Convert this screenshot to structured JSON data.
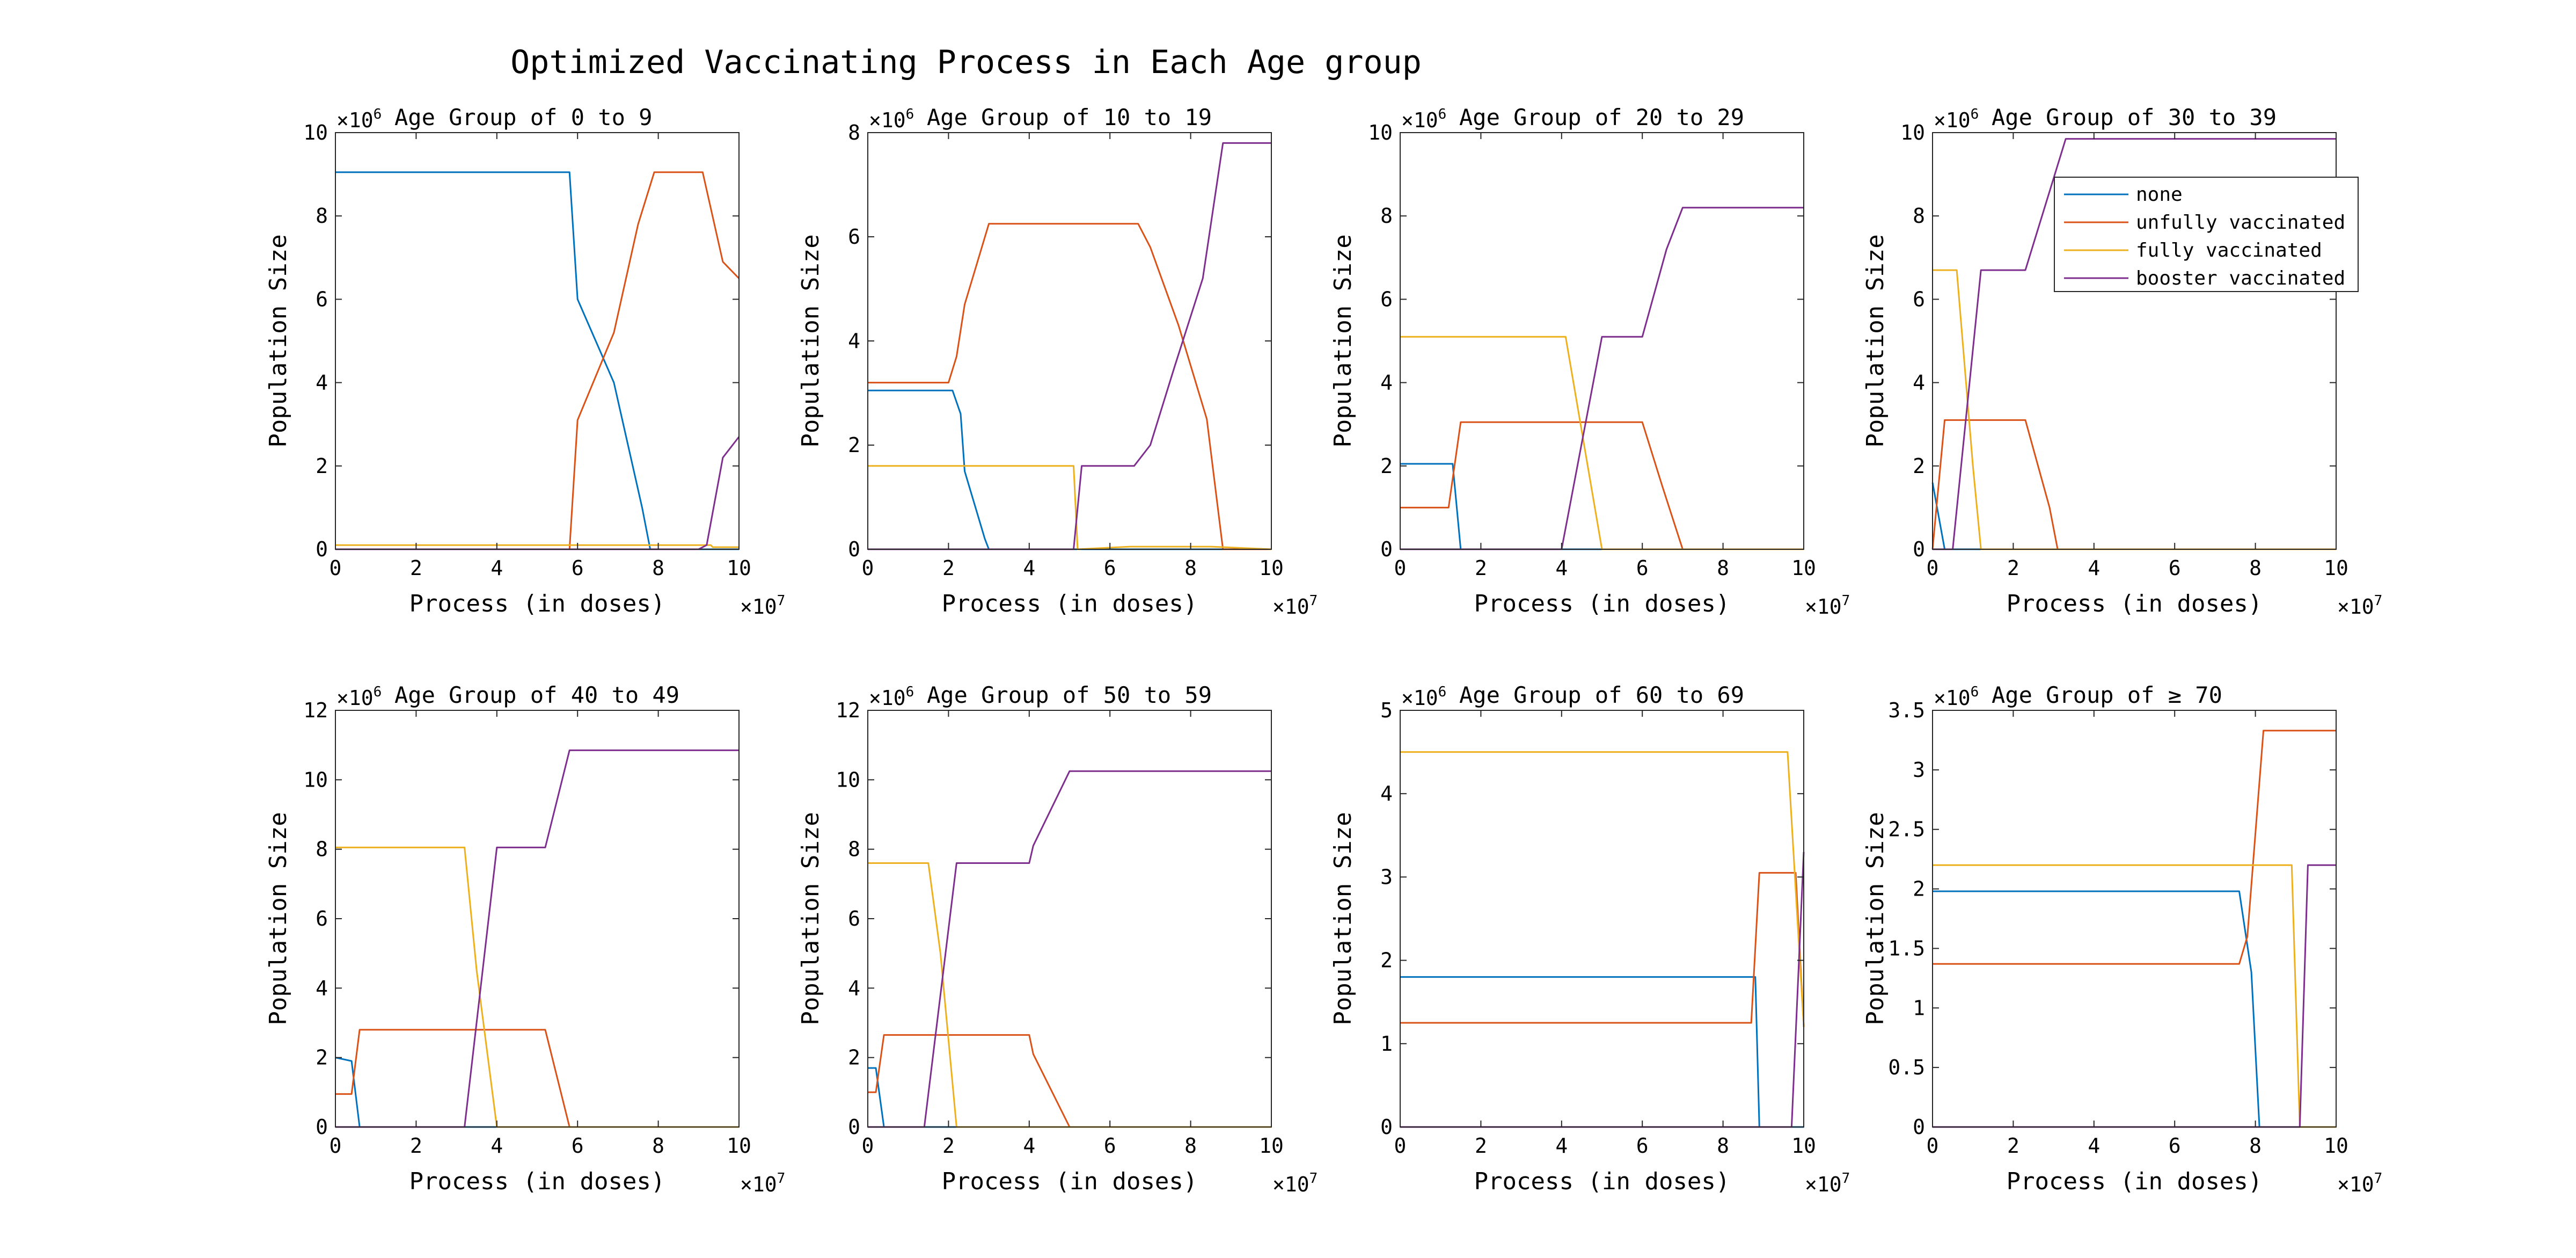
{
  "figure": {
    "title": "Optimized Vaccinating Process in Each Age group"
  },
  "colors": {
    "none": "#0072BD",
    "unfully vaccinated": "#D95319",
    "fully vaccinated": "#EDB120",
    "booster vaccinated": "#7E2F8E"
  },
  "legend": {
    "location": "top-right",
    "entries": [
      "none",
      "unfully vaccinated",
      "fully vaccinated",
      "booster vaccinated"
    ]
  },
  "chart_data": [
    {
      "type": "line",
      "title": "Age Group of 0 to 9",
      "xlabel": "Process (in doses)",
      "ylabel": "Population Size",
      "x_multiplier": "10^7",
      "y_multiplier": "10^6",
      "xlim": [
        0,
        10
      ],
      "ylim": [
        0,
        10
      ],
      "xticks": [
        "0",
        "2",
        "4",
        "6",
        "8",
        "10"
      ],
      "yticks": [
        "0",
        "2",
        "4",
        "6",
        "8",
        "10"
      ],
      "series": [
        {
          "key": "none",
          "points": [
            [
              0,
              9.05
            ],
            [
              5.8,
              9.05
            ],
            [
              6.0,
              6.0
            ],
            [
              6.9,
              4.0
            ],
            [
              7.6,
              1.0
            ],
            [
              7.8,
              0
            ],
            [
              10,
              0
            ]
          ]
        },
        {
          "key": "unfully vaccinated",
          "points": [
            [
              0,
              0
            ],
            [
              5.8,
              0
            ],
            [
              6.0,
              3.1
            ],
            [
              6.9,
              5.2
            ],
            [
              7.5,
              7.8
            ],
            [
              7.9,
              9.05
            ],
            [
              9.1,
              9.05
            ],
            [
              9.6,
              6.9
            ],
            [
              10,
              6.5
            ]
          ]
        },
        {
          "key": "fully vaccinated",
          "points": [
            [
              0,
              0.1
            ],
            [
              9.3,
              0.1
            ],
            [
              9.35,
              0.05
            ],
            [
              10,
              0.05
            ]
          ]
        },
        {
          "key": "booster vaccinated",
          "points": [
            [
              0,
              0
            ],
            [
              9.0,
              0
            ],
            [
              9.2,
              0.1
            ],
            [
              9.6,
              2.2
            ],
            [
              10,
              2.7
            ]
          ]
        }
      ]
    },
    {
      "type": "line",
      "title": "Age Group of 10 to 19",
      "xlabel": "Process (in doses)",
      "ylabel": "Population Size",
      "x_multiplier": "10^7",
      "y_multiplier": "10^6",
      "xlim": [
        0,
        10
      ],
      "ylim": [
        0,
        8
      ],
      "xticks": [
        "0",
        "2",
        "4",
        "6",
        "8",
        "10"
      ],
      "yticks": [
        "0",
        "2",
        "4",
        "6",
        "8"
      ],
      "series": [
        {
          "key": "none",
          "points": [
            [
              0,
              3.05
            ],
            [
              2.1,
              3.05
            ],
            [
              2.3,
              2.6
            ],
            [
              2.4,
              1.5
            ],
            [
              2.9,
              0.2
            ],
            [
              3.0,
              0
            ],
            [
              10,
              0
            ]
          ]
        },
        {
          "key": "unfully vaccinated",
          "points": [
            [
              0,
              3.2
            ],
            [
              2.0,
              3.2
            ],
            [
              2.2,
              3.7
            ],
            [
              2.4,
              4.7
            ],
            [
              3.0,
              6.25
            ],
            [
              6.7,
              6.25
            ],
            [
              7.0,
              5.8
            ],
            [
              7.7,
              4.3
            ],
            [
              8.4,
              2.5
            ],
            [
              8.8,
              0
            ],
            [
              10,
              0
            ]
          ]
        },
        {
          "key": "fully vaccinated",
          "points": [
            [
              0,
              1.6
            ],
            [
              5.1,
              1.6
            ],
            [
              5.2,
              0
            ],
            [
              6.5,
              0.05
            ],
            [
              8.5,
              0.05
            ],
            [
              10,
              0
            ]
          ]
        },
        {
          "key": "booster vaccinated",
          "points": [
            [
              0,
              0
            ],
            [
              5.1,
              0
            ],
            [
              5.3,
              1.6
            ],
            [
              6.6,
              1.6
            ],
            [
              7.0,
              2.0
            ],
            [
              7.6,
              3.5
            ],
            [
              8.3,
              5.2
            ],
            [
              8.8,
              7.8
            ],
            [
              10,
              7.8
            ]
          ]
        }
      ]
    },
    {
      "type": "line",
      "title": "Age Group of 20 to 29",
      "xlabel": "Process (in doses)",
      "ylabel": "Population Size",
      "x_multiplier": "10^7",
      "y_multiplier": "10^6",
      "xlim": [
        0,
        10
      ],
      "ylim": [
        0,
        10
      ],
      "xticks": [
        "0",
        "2",
        "4",
        "6",
        "8",
        "10"
      ],
      "yticks": [
        "0",
        "2",
        "4",
        "6",
        "8",
        "10"
      ],
      "series": [
        {
          "key": "none",
          "points": [
            [
              0,
              2.05
            ],
            [
              1.3,
              2.05
            ],
            [
              1.5,
              0
            ],
            [
              10,
              0
            ]
          ]
        },
        {
          "key": "unfully vaccinated",
          "points": [
            [
              0,
              1.0
            ],
            [
              1.2,
              1.0
            ],
            [
              1.5,
              3.05
            ],
            [
              6.0,
              3.05
            ],
            [
              6.5,
              1.5
            ],
            [
              7.0,
              0
            ],
            [
              10,
              0
            ]
          ]
        },
        {
          "key": "fully vaccinated",
          "points": [
            [
              0,
              5.1
            ],
            [
              4.1,
              5.1
            ],
            [
              5.0,
              0
            ],
            [
              10,
              0
            ]
          ]
        },
        {
          "key": "booster vaccinated",
          "points": [
            [
              0,
              0
            ],
            [
              4.0,
              0
            ],
            [
              5.0,
              5.1
            ],
            [
              6.0,
              5.1
            ],
            [
              6.6,
              7.2
            ],
            [
              7.0,
              8.2
            ],
            [
              10,
              8.2
            ]
          ]
        }
      ]
    },
    {
      "type": "line",
      "title": "Age Group of 30 to 39",
      "xlabel": "Process (in doses)",
      "ylabel": "Population Size",
      "x_multiplier": "10^7",
      "y_multiplier": "10^6",
      "xlim": [
        0,
        10
      ],
      "ylim": [
        0,
        10
      ],
      "xticks": [
        "0",
        "2",
        "4",
        "6",
        "8",
        "10"
      ],
      "yticks": [
        "0",
        "2",
        "4",
        "6",
        "8",
        "10"
      ],
      "legend": true,
      "series": [
        {
          "key": "none",
          "points": [
            [
              0,
              1.6
            ],
            [
              0.3,
              0
            ],
            [
              10,
              0
            ]
          ]
        },
        {
          "key": "unfully vaccinated",
          "points": [
            [
              0,
              0
            ],
            [
              0.3,
              3.1
            ],
            [
              2.3,
              3.1
            ],
            [
              2.9,
              1.0
            ],
            [
              3.1,
              0
            ],
            [
              10,
              0
            ]
          ]
        },
        {
          "key": "fully vaccinated",
          "points": [
            [
              0,
              6.7
            ],
            [
              0.6,
              6.7
            ],
            [
              1.0,
              2.0
            ],
            [
              1.2,
              0
            ],
            [
              10,
              0
            ]
          ]
        },
        {
          "key": "booster vaccinated",
          "points": [
            [
              0,
              0
            ],
            [
              0.5,
              0
            ],
            [
              1.2,
              6.7
            ],
            [
              2.3,
              6.7
            ],
            [
              3.3,
              9.85
            ],
            [
              10,
              9.85
            ]
          ]
        }
      ]
    },
    {
      "type": "line",
      "title": "Age Group of 40 to 49",
      "xlabel": "Process (in doses)",
      "ylabel": "Population Size",
      "x_multiplier": "10^7",
      "y_multiplier": "10^6",
      "xlim": [
        0,
        10
      ],
      "ylim": [
        0,
        12
      ],
      "xticks": [
        "0",
        "2",
        "4",
        "6",
        "8",
        "10"
      ],
      "yticks": [
        "0",
        "2",
        "4",
        "6",
        "8",
        "10",
        "12"
      ],
      "series": [
        {
          "key": "none",
          "points": [
            [
              0,
              2.0
            ],
            [
              0.4,
              1.9
            ],
            [
              0.6,
              0
            ],
            [
              10,
              0
            ]
          ]
        },
        {
          "key": "unfully vaccinated",
          "points": [
            [
              0,
              0.95
            ],
            [
              0.4,
              0.95
            ],
            [
              0.6,
              2.8
            ],
            [
              5.2,
              2.8
            ],
            [
              5.8,
              0
            ],
            [
              10,
              0
            ]
          ]
        },
        {
          "key": "fully vaccinated",
          "points": [
            [
              0,
              8.05
            ],
            [
              3.2,
              8.05
            ],
            [
              3.5,
              4.5
            ],
            [
              4.0,
              0
            ],
            [
              10,
              0
            ]
          ]
        },
        {
          "key": "booster vaccinated",
          "points": [
            [
              0,
              0
            ],
            [
              3.2,
              0
            ],
            [
              4.0,
              8.05
            ],
            [
              5.2,
              8.05
            ],
            [
              5.8,
              10.85
            ],
            [
              10,
              10.85
            ]
          ]
        }
      ]
    },
    {
      "type": "line",
      "title": "Age Group of 50 to 59",
      "xlabel": "Process (in doses)",
      "ylabel": "Population Size",
      "x_multiplier": "10^7",
      "y_multiplier": "10^6",
      "xlim": [
        0,
        10
      ],
      "ylim": [
        0,
        12
      ],
      "xticks": [
        "0",
        "2",
        "4",
        "6",
        "8",
        "10"
      ],
      "yticks": [
        "0",
        "2",
        "4",
        "6",
        "8",
        "10",
        "12"
      ],
      "series": [
        {
          "key": "none",
          "points": [
            [
              0,
              1.7
            ],
            [
              0.2,
              1.7
            ],
            [
              0.4,
              0
            ],
            [
              10,
              0
            ]
          ]
        },
        {
          "key": "unfully vaccinated",
          "points": [
            [
              0,
              1.0
            ],
            [
              0.2,
              1.0
            ],
            [
              0.4,
              2.65
            ],
            [
              4.0,
              2.65
            ],
            [
              4.1,
              2.1
            ],
            [
              5.0,
              0
            ],
            [
              10,
              0
            ]
          ]
        },
        {
          "key": "fully vaccinated",
          "points": [
            [
              0,
              7.6
            ],
            [
              1.5,
              7.6
            ],
            [
              1.8,
              5.0
            ],
            [
              2.2,
              0
            ],
            [
              10,
              0
            ]
          ]
        },
        {
          "key": "booster vaccinated",
          "points": [
            [
              0,
              0
            ],
            [
              1.4,
              0
            ],
            [
              2.2,
              7.6
            ],
            [
              4.0,
              7.6
            ],
            [
              4.1,
              8.1
            ],
            [
              5.0,
              10.25
            ],
            [
              10,
              10.25
            ]
          ]
        }
      ]
    },
    {
      "type": "line",
      "title": "Age Group of 60 to 69",
      "xlabel": "Process (in doses)",
      "ylabel": "Population Size",
      "x_multiplier": "10^7",
      "y_multiplier": "10^6",
      "xlim": [
        0,
        10
      ],
      "ylim": [
        0,
        5
      ],
      "xticks": [
        "0",
        "2",
        "4",
        "6",
        "8",
        "10"
      ],
      "yticks": [
        "0",
        "1",
        "2",
        "3",
        "4",
        "5"
      ],
      "series": [
        {
          "key": "none",
          "points": [
            [
              0,
              1.8
            ],
            [
              8.8,
              1.8
            ],
            [
              8.9,
              0
            ],
            [
              10,
              0
            ]
          ]
        },
        {
          "key": "unfully vaccinated",
          "points": [
            [
              0,
              1.25
            ],
            [
              8.7,
              1.25
            ],
            [
              8.9,
              3.05
            ],
            [
              9.8,
              3.05
            ],
            [
              10,
              1.2
            ]
          ]
        },
        {
          "key": "fully vaccinated",
          "points": [
            [
              0,
              4.5
            ],
            [
              9.6,
              4.5
            ],
            [
              10,
              1.2
            ]
          ]
        },
        {
          "key": "booster vaccinated",
          "points": [
            [
              0,
              0
            ],
            [
              9.7,
              0
            ],
            [
              10,
              3.3
            ]
          ]
        }
      ]
    },
    {
      "type": "line",
      "title": "Age Group of ≥ 70",
      "xlabel": "Process (in doses)",
      "ylabel": "Population Size",
      "x_multiplier": "10^7",
      "y_multiplier": "10^6",
      "xlim": [
        0,
        10
      ],
      "ylim": [
        0,
        3.5
      ],
      "xticks": [
        "0",
        "2",
        "4",
        "6",
        "8",
        "10"
      ],
      "yticks": [
        "0",
        "0.5",
        "1",
        "1.5",
        "2",
        "2.5",
        "3",
        "3.5"
      ],
      "series": [
        {
          "key": "none",
          "points": [
            [
              0,
              1.98
            ],
            [
              7.6,
              1.98
            ],
            [
              7.9,
              1.3
            ],
            [
              8.1,
              0
            ],
            [
              10,
              0
            ]
          ]
        },
        {
          "key": "unfully vaccinated",
          "points": [
            [
              0,
              1.37
            ],
            [
              7.6,
              1.37
            ],
            [
              7.8,
              1.6
            ],
            [
              8.2,
              3.33
            ],
            [
              10,
              3.33
            ]
          ]
        },
        {
          "key": "fully vaccinated",
          "points": [
            [
              0,
              2.2
            ],
            [
              8.9,
              2.2
            ],
            [
              9.1,
              0
            ],
            [
              10,
              0
            ]
          ]
        },
        {
          "key": "booster vaccinated",
          "points": [
            [
              0,
              0
            ],
            [
              9.1,
              0
            ],
            [
              9.3,
              2.2
            ],
            [
              10,
              2.2
            ]
          ]
        }
      ]
    }
  ]
}
